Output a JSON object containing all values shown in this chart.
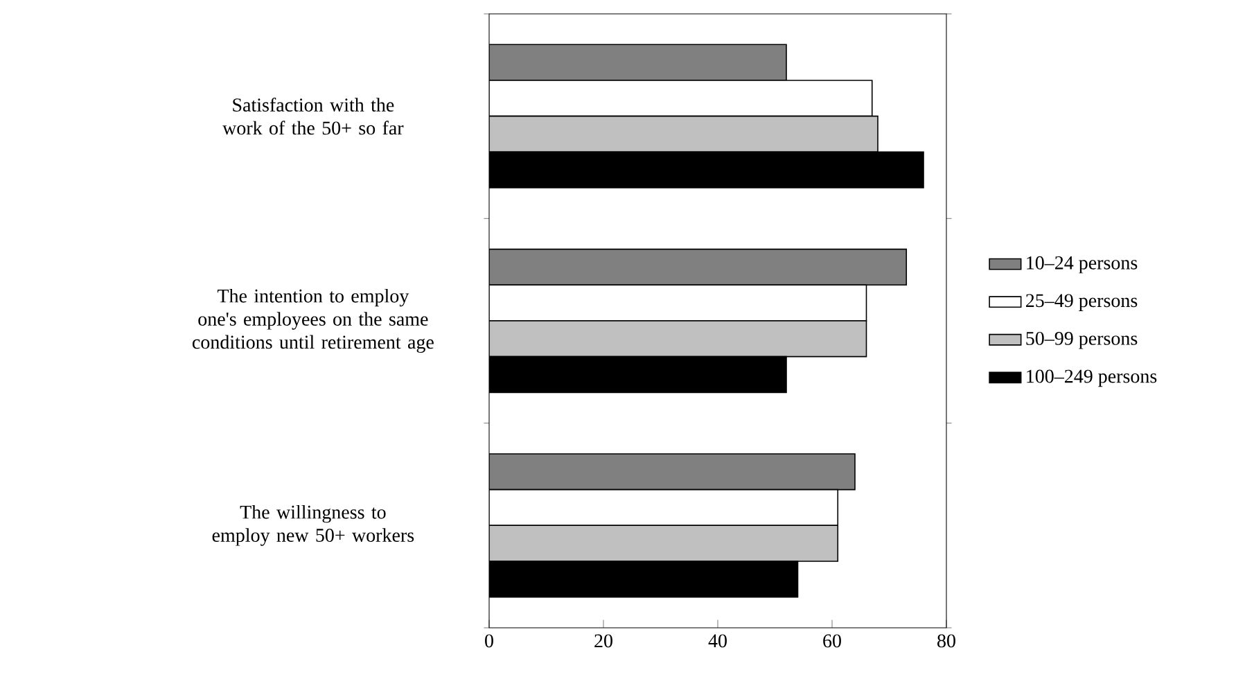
{
  "chart_data": {
    "type": "bar",
    "orientation": "horizontal",
    "categories": [
      "Satisfaction with the work of the 50+ so far",
      "The intention to employ one's employees on the same conditions until retirement age",
      "The willingness to employ new 50+ workers"
    ],
    "series": [
      {
        "name": "10–24 persons",
        "color": "#808080",
        "values": [
          52,
          73,
          64
        ]
      },
      {
        "name": "25–49 persons",
        "color": "#ffffff",
        "values": [
          67,
          66,
          61
        ]
      },
      {
        "name": "50–99 persons",
        "color": "#c0c0c0",
        "values": [
          68,
          66,
          61
        ]
      },
      {
        "name": "100–249 persons",
        "color": "#000000",
        "values": [
          76,
          52,
          54
        ]
      }
    ],
    "xlim": [
      0,
      80
    ],
    "xticks": [
      0,
      20,
      40,
      60,
      80
    ],
    "legend": "right"
  }
}
